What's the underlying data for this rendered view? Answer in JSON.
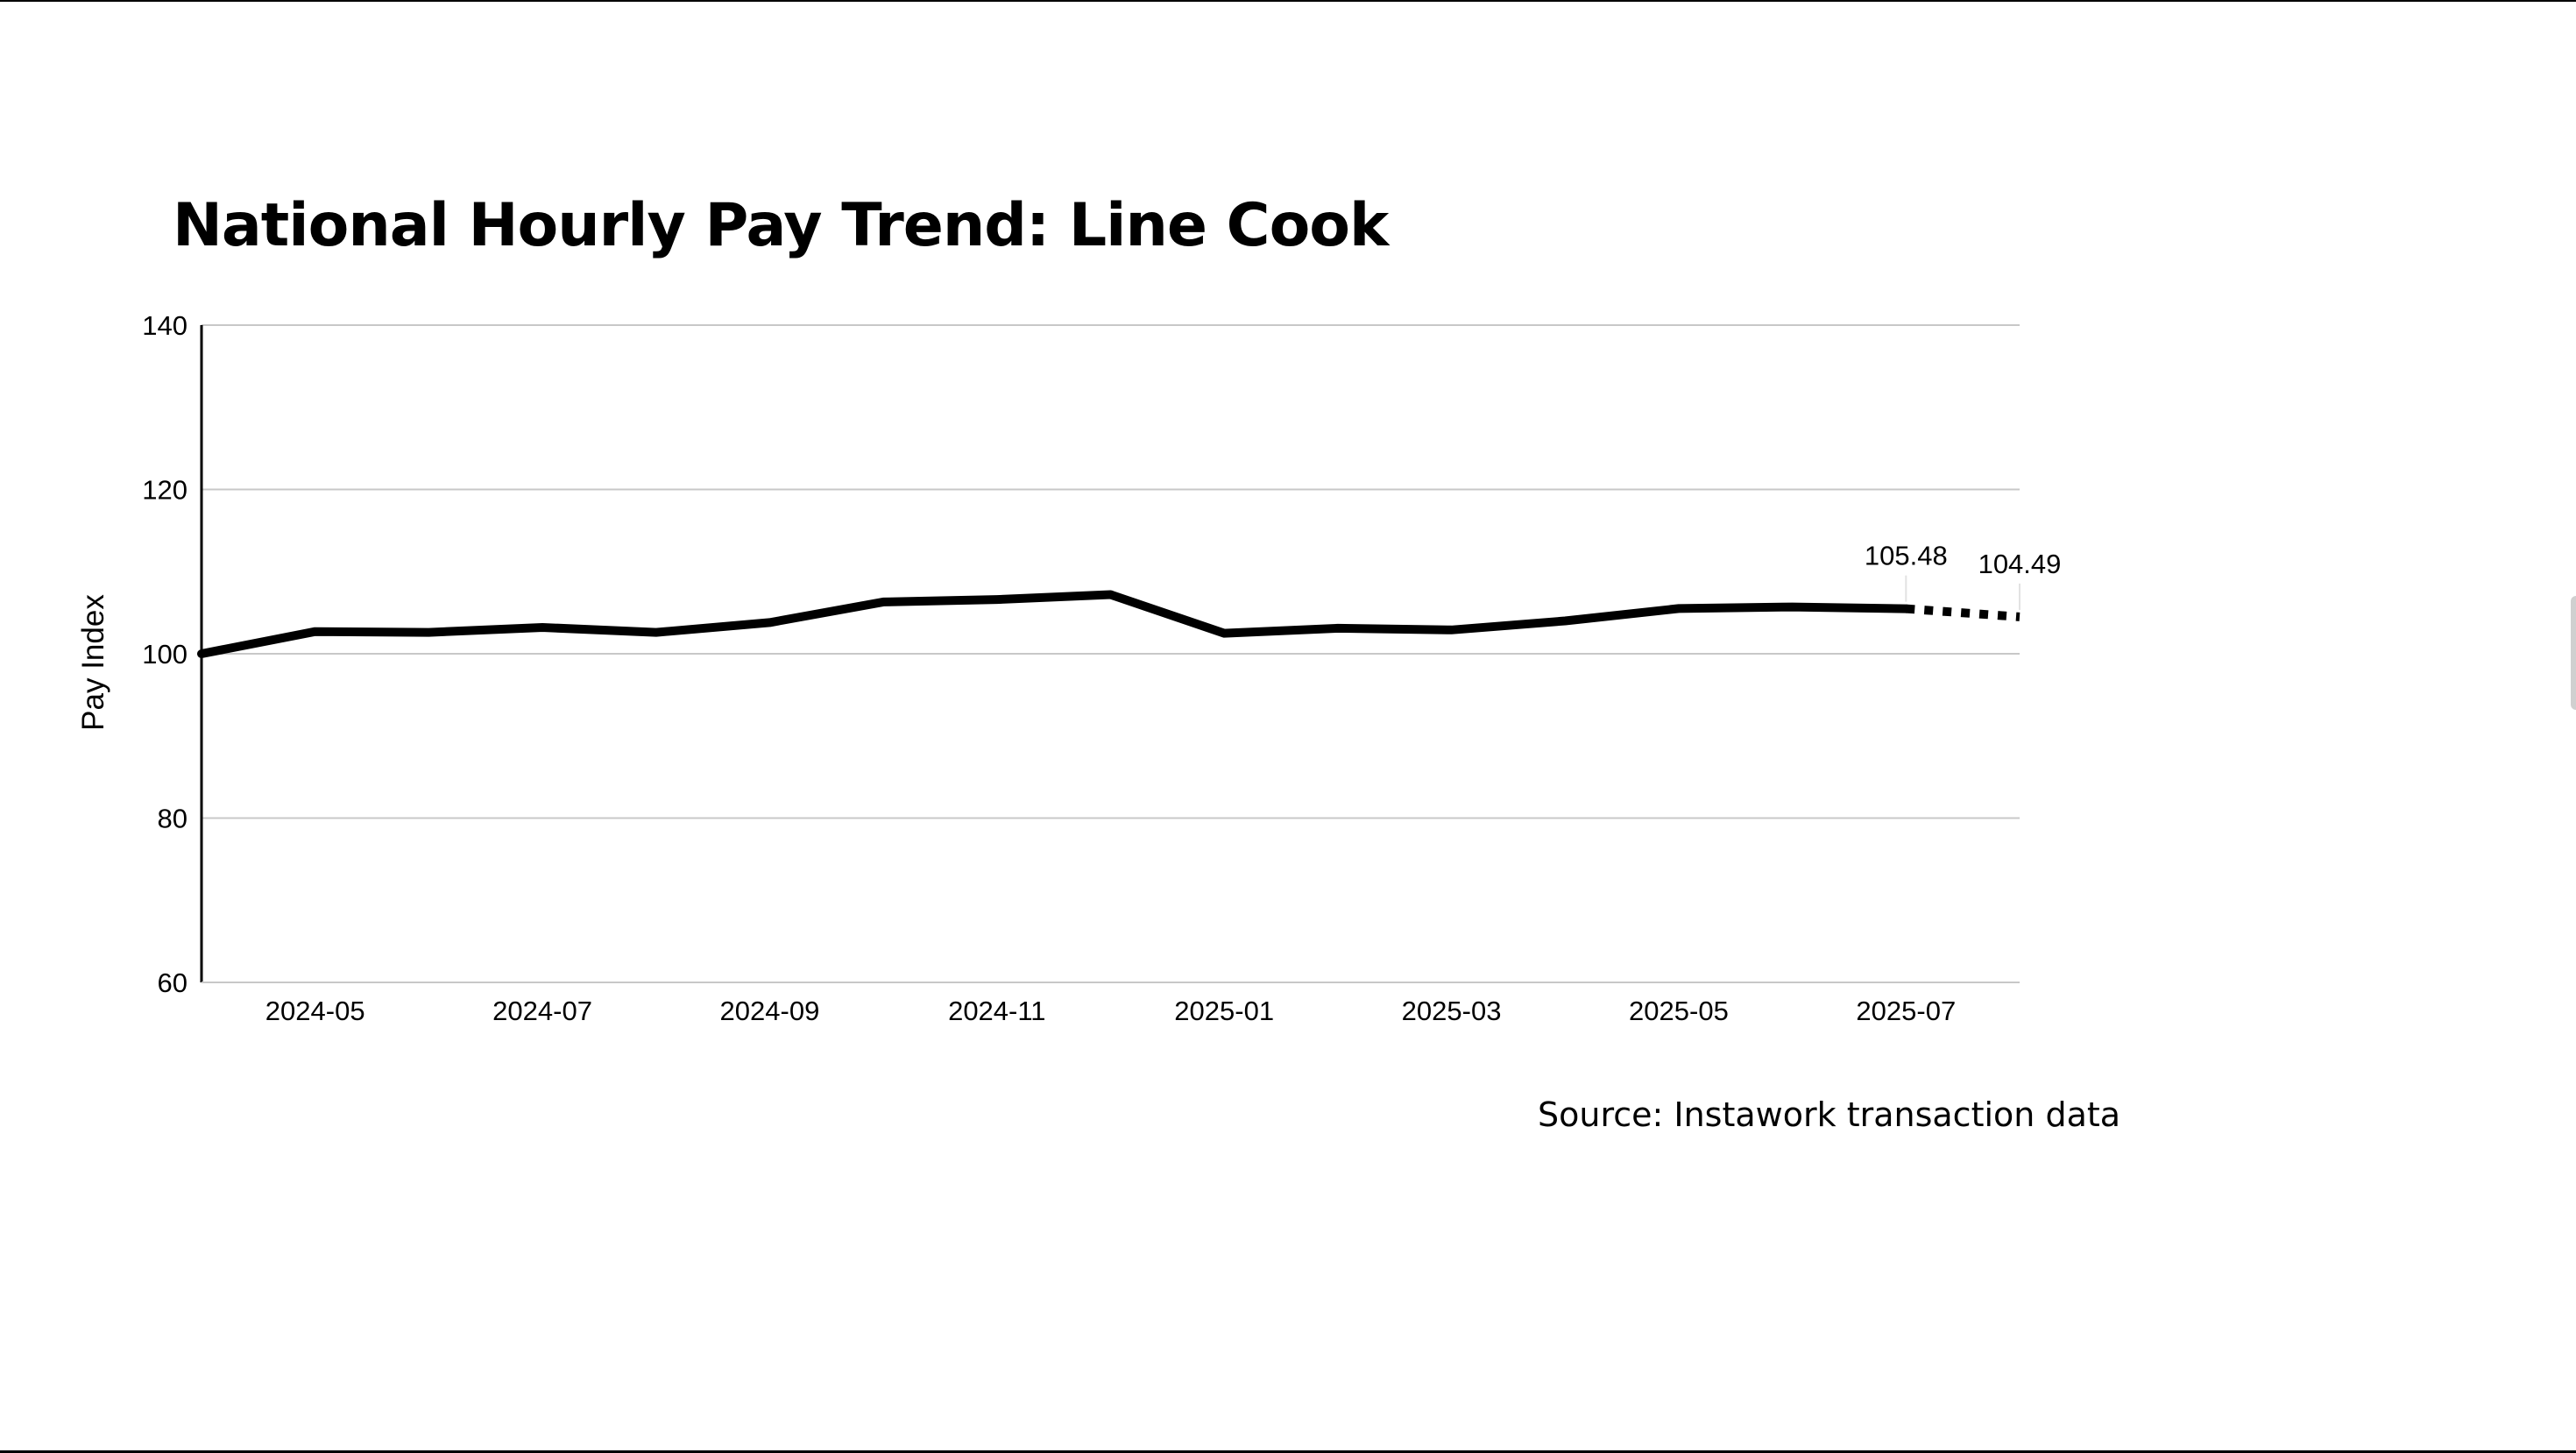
{
  "title": "National Hourly Pay Trend: Line Cook",
  "source": "Source: Instawork transaction data",
  "colors": {
    "line": "#000000",
    "grid": "#c8c8c8",
    "axis": "#000000",
    "background": "#ffffff"
  },
  "chart_data": {
    "type": "line",
    "title": "National Hourly Pay Trend: Line Cook",
    "xlabel": "",
    "ylabel": "Pay Index",
    "ylim": [
      60,
      140
    ],
    "yticks": [
      60,
      80,
      100,
      120,
      140
    ],
    "xlim": [
      "2024-04",
      "2025-08"
    ],
    "xticks": [
      "2024-05",
      "2024-07",
      "2024-09",
      "2024-11",
      "2025-01",
      "2025-03",
      "2025-05",
      "2025-07"
    ],
    "grid": "horizontal",
    "legend": "none",
    "series": [
      {
        "style": "solid",
        "points": [
          {
            "x": "2024-04",
            "y": 100.0
          },
          {
            "x": "2024-05",
            "y": 102.7
          },
          {
            "x": "2024-06",
            "y": 102.6
          },
          {
            "x": "2024-07",
            "y": 103.2
          },
          {
            "x": "2024-08",
            "y": 102.6
          },
          {
            "x": "2024-09",
            "y": 103.8
          },
          {
            "x": "2024-10",
            "y": 106.3
          },
          {
            "x": "2024-11",
            "y": 106.6
          },
          {
            "x": "2024-12",
            "y": 107.2
          },
          {
            "x": "2025-01",
            "y": 102.5
          },
          {
            "x": "2025-02",
            "y": 103.1
          },
          {
            "x": "2025-03",
            "y": 102.9
          },
          {
            "x": "2025-04",
            "y": 104.0
          },
          {
            "x": "2025-05",
            "y": 105.5
          },
          {
            "x": "2025-06",
            "y": 105.7
          },
          {
            "x": "2025-07",
            "y": 105.48
          }
        ]
      },
      {
        "style": "dotted",
        "points": [
          {
            "x": "2025-07",
            "y": 105.48
          },
          {
            "x": "2025-08",
            "y": 104.49
          }
        ]
      }
    ],
    "annotations": [
      {
        "x": "2025-07",
        "y": 105.48,
        "text": "105.48"
      },
      {
        "x": "2025-08",
        "y": 104.49,
        "text": "104.49"
      }
    ]
  }
}
